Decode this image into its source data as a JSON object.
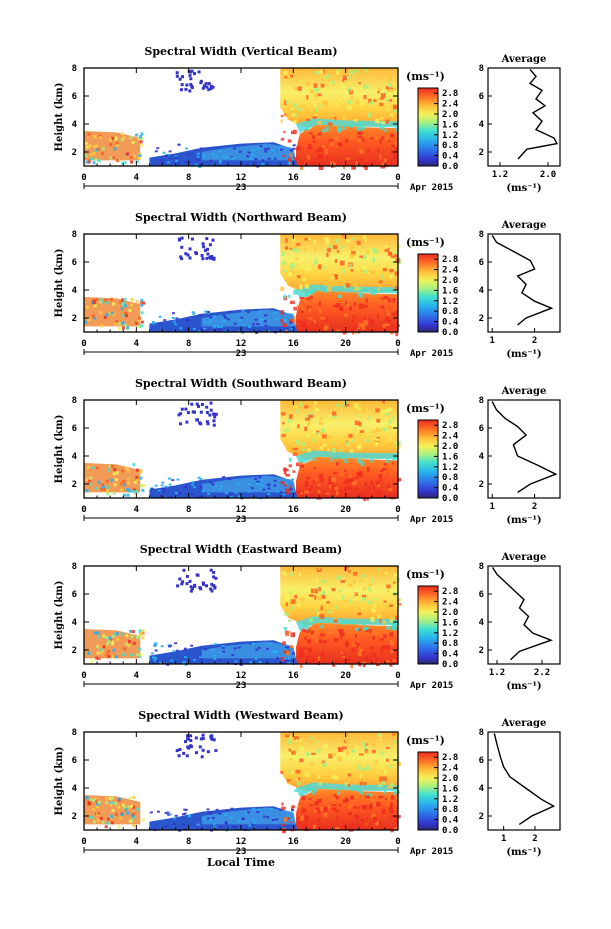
{
  "chart_data": [
    {
      "type": "heatmap",
      "title": "Spectral Width (Vertical Beam)",
      "ylabel": "Height (km)",
      "x_ticks": [
        "0",
        "4",
        "8",
        "12",
        "16",
        "20",
        "0"
      ],
      "date_center": "23",
      "date_right": "Apr 2015",
      "y_ticks": [
        "2",
        "4",
        "6",
        "8"
      ],
      "xlim": [
        0,
        24
      ],
      "ylim": [
        1,
        8
      ],
      "colorbar": {
        "label": "(ms⁻¹)",
        "ticks": [
          "0.0",
          "0.4",
          "0.8",
          "1.2",
          "1.6",
          "2.0",
          "2.4",
          "2.8"
        ],
        "range": [
          0,
          3.0
        ]
      },
      "average": {
        "title": "Average",
        "xlabel": "(ms⁻¹)",
        "x_ticks": [
          "1.2",
          "2.0"
        ],
        "xlim": [
          1.0,
          2.2
        ],
        "y_ticks": [
          "2",
          "4",
          "6",
          "8"
        ],
        "profile": [
          [
            1.5,
            1.5
          ],
          [
            1.65,
            2.2
          ],
          [
            2.15,
            2.6
          ],
          [
            2.1,
            3.0
          ],
          [
            1.8,
            3.6
          ],
          [
            1.9,
            4.2
          ],
          [
            1.75,
            4.8
          ],
          [
            1.95,
            5.3
          ],
          [
            1.8,
            5.8
          ],
          [
            1.9,
            6.4
          ],
          [
            1.7,
            6.9
          ],
          [
            1.8,
            7.4
          ],
          [
            1.7,
            7.9
          ]
        ]
      }
    },
    {
      "type": "heatmap",
      "title": "Spectral Width (Northward Beam)",
      "ylabel": "Height (km)",
      "x_ticks": [
        "0",
        "4",
        "8",
        "12",
        "16",
        "20",
        "0"
      ],
      "date_center": "23",
      "date_right": "Apr 2015",
      "y_ticks": [
        "2",
        "4",
        "6",
        "8"
      ],
      "xlim": [
        0,
        24
      ],
      "ylim": [
        1,
        8
      ],
      "colorbar": {
        "label": "(ms⁻¹)",
        "ticks": [
          "0.0",
          "0.4",
          "0.8",
          "1.2",
          "1.6",
          "2.0",
          "2.4",
          "2.8"
        ],
        "range": [
          0,
          3.0
        ]
      },
      "average": {
        "title": "Average",
        "xlabel": "(ms⁻¹)",
        "x_ticks": [
          "1",
          "2"
        ],
        "xlim": [
          0.9,
          2.6
        ],
        "y_ticks": [
          "2",
          "4",
          "6",
          "8"
        ],
        "profile": [
          [
            1.6,
            1.5
          ],
          [
            1.8,
            2.0
          ],
          [
            2.4,
            2.7
          ],
          [
            2.0,
            3.2
          ],
          [
            1.7,
            3.8
          ],
          [
            1.8,
            4.4
          ],
          [
            1.6,
            5.0
          ],
          [
            2.0,
            5.5
          ],
          [
            1.9,
            6.1
          ],
          [
            1.6,
            6.6
          ],
          [
            1.1,
            7.4
          ],
          [
            1.0,
            7.9
          ]
        ]
      }
    },
    {
      "type": "heatmap",
      "title": "Spectral Width (Southward Beam)",
      "ylabel": "Height (km)",
      "x_ticks": [
        "0",
        "4",
        "8",
        "12",
        "16",
        "20",
        "0"
      ],
      "date_center": "23",
      "date_right": "Apr 2015",
      "y_ticks": [
        "2",
        "4",
        "6",
        "8"
      ],
      "xlim": [
        0,
        24
      ],
      "ylim": [
        1,
        8
      ],
      "colorbar": {
        "label": "(ms⁻¹)",
        "ticks": [
          "0.0",
          "0.4",
          "0.8",
          "1.2",
          "1.6",
          "2.0",
          "2.4",
          "2.8"
        ],
        "range": [
          0,
          3.0
        ]
      },
      "average": {
        "title": "Average",
        "xlabel": "(ms⁻¹)",
        "x_ticks": [
          "1",
          "2"
        ],
        "xlim": [
          0.9,
          2.6
        ],
        "y_ticks": [
          "2",
          "4",
          "6",
          "8"
        ],
        "profile": [
          [
            1.6,
            1.4
          ],
          [
            1.9,
            2.0
          ],
          [
            2.5,
            2.7
          ],
          [
            2.1,
            3.3
          ],
          [
            1.6,
            4.0
          ],
          [
            1.5,
            4.8
          ],
          [
            1.8,
            5.5
          ],
          [
            1.6,
            6.1
          ],
          [
            1.3,
            6.7
          ],
          [
            1.1,
            7.3
          ],
          [
            1.0,
            7.9
          ]
        ]
      }
    },
    {
      "type": "heatmap",
      "title": "Spectral Width (Eastward Beam)",
      "ylabel": "Height (km)",
      "x_ticks": [
        "0",
        "4",
        "8",
        "12",
        "16",
        "20",
        "0"
      ],
      "date_center": "23",
      "date_right": "Apr 2015",
      "y_ticks": [
        "2",
        "4",
        "6",
        "8"
      ],
      "xlim": [
        0,
        24
      ],
      "ylim": [
        1,
        8
      ],
      "colorbar": {
        "label": "(ms⁻¹)",
        "ticks": [
          "0.0",
          "0.4",
          "0.8",
          "1.2",
          "1.6",
          "2.0",
          "2.4",
          "2.8"
        ],
        "range": [
          0,
          3.0
        ]
      },
      "average": {
        "title": "Average",
        "xlabel": "(ms⁻¹)",
        "x_ticks": [
          "1.2",
          "2.2"
        ],
        "xlim": [
          1.0,
          2.6
        ],
        "y_ticks": [
          "2",
          "4",
          "6",
          "8"
        ],
        "profile": [
          [
            1.5,
            1.3
          ],
          [
            1.7,
            1.9
          ],
          [
            2.4,
            2.7
          ],
          [
            2.0,
            3.2
          ],
          [
            1.8,
            3.8
          ],
          [
            1.9,
            4.4
          ],
          [
            1.7,
            5.0
          ],
          [
            1.8,
            5.6
          ],
          [
            1.6,
            6.2
          ],
          [
            1.4,
            6.8
          ],
          [
            1.2,
            7.4
          ],
          [
            1.1,
            7.9
          ]
        ]
      }
    },
    {
      "type": "heatmap",
      "title": "Spectral Width (Westward Beam)",
      "ylabel": "Height (km)",
      "xlabel": "Local Time",
      "x_ticks": [
        "0",
        "4",
        "8",
        "12",
        "16",
        "20",
        "0"
      ],
      "date_center": "23",
      "date_right": "Apr 2015",
      "y_ticks": [
        "2",
        "4",
        "6",
        "8"
      ],
      "xlim": [
        0,
        24
      ],
      "ylim": [
        1,
        8
      ],
      "colorbar": {
        "label": "(ms⁻¹)",
        "ticks": [
          "0.0",
          "0.4",
          "0.8",
          "1.2",
          "1.6",
          "2.0",
          "2.4",
          "2.8"
        ],
        "range": [
          0,
          3.0
        ]
      },
      "average": {
        "title": "Average",
        "xlabel": "(ms⁻¹)",
        "x_ticks": [
          "1",
          "2"
        ],
        "xlim": [
          0.5,
          2.8
        ],
        "y_ticks": [
          "2",
          "4",
          "6",
          "8"
        ],
        "profile": [
          [
            1.5,
            1.4
          ],
          [
            1.9,
            2.0
          ],
          [
            2.6,
            2.7
          ],
          [
            2.2,
            3.2
          ],
          [
            1.7,
            4.0
          ],
          [
            1.2,
            4.8
          ],
          [
            1.0,
            5.5
          ],
          [
            0.9,
            6.2
          ],
          [
            0.8,
            7.0
          ],
          [
            0.7,
            7.9
          ]
        ]
      }
    }
  ]
}
